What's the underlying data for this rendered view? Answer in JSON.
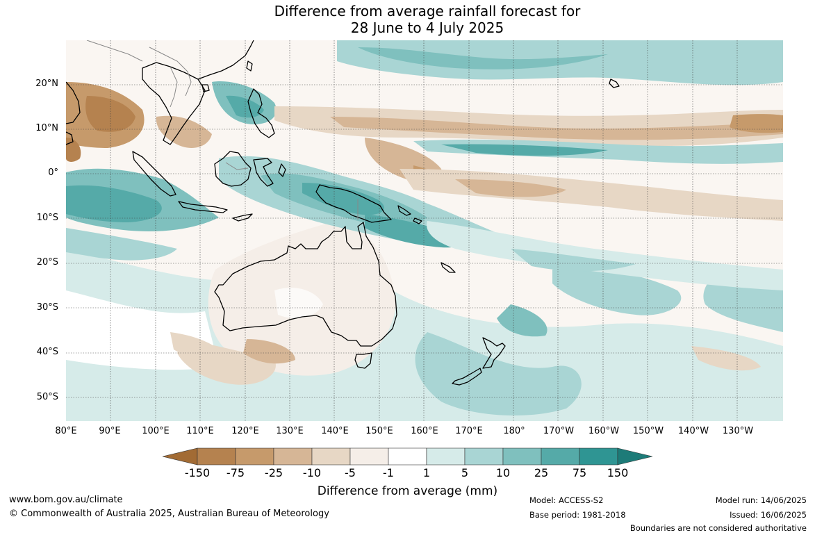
{
  "title": {
    "line1": "Difference from average rainfall forecast for",
    "line2": "28 June to 4 July 2025"
  },
  "map": {
    "lat_labels": [
      "20°N",
      "10°N",
      "0°",
      "10°S",
      "20°S",
      "30°S",
      "40°S",
      "50°S"
    ],
    "lon_labels": [
      "80°E",
      "90°E",
      "100°E",
      "110°E",
      "120°E",
      "130°E",
      "140°E",
      "150°E",
      "160°E",
      "170°E",
      "180°",
      "170°W",
      "160°W",
      "150°W",
      "140°W",
      "130°W"
    ]
  },
  "colorbar": {
    "title": "Difference from average (mm)",
    "labels": [
      "-150",
      "-75",
      "-25",
      "-10",
      "-5",
      "-1",
      "1",
      "5",
      "10",
      "25",
      "75",
      "150"
    ],
    "colors": [
      "#a26b34",
      "#b5824f",
      "#c69a6b",
      "#d6b696",
      "#e7d7c5",
      "#f5eee8",
      "#ffffff",
      "#d6ebe9",
      "#a9d5d4",
      "#7fc0be",
      "#55aaa8",
      "#2f9593",
      "#1d7b78"
    ]
  },
  "footer": {
    "website": "www.bom.gov.au/climate",
    "copyright": "© Commonwealth of Australia 2025, Australian Bureau of Meteorology",
    "model": "Model: ACCESS-S2",
    "base_period": "Base period: 1981-2018",
    "model_run": "Model run: 14/06/2025",
    "issued": "Issued: 16/06/2025",
    "disclaimer": "Boundaries are not considered authoritative"
  }
}
